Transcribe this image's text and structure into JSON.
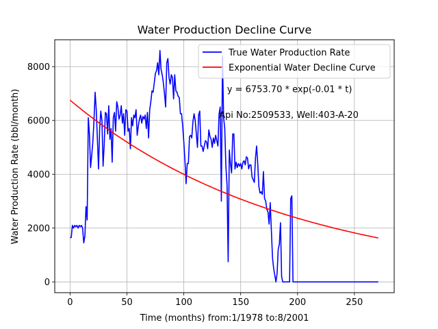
{
  "chart_data": {
    "type": "line",
    "title": "Water Production Decline Curve",
    "xlabel": "Time (months) from:1/1978 to:8/2001",
    "ylabel": "Water Production Rate (bbl/month)",
    "xlim": [
      -13.5,
      285
    ],
    "ylim": [
      -400,
      9000
    ],
    "xticks": [
      0,
      50,
      100,
      150,
      200,
      250
    ],
    "yticks": [
      0,
      2000,
      4000,
      6000,
      8000
    ],
    "grid": true,
    "legend_position": "top-right",
    "annotations": [
      {
        "text": "y = 6753.70 * exp(-0.01 * t)",
        "x": 138,
        "y": 7050
      },
      {
        "text": "Api No:2509533, Well:403-A-20",
        "x": 131,
        "y": 6100
      }
    ],
    "series": [
      {
        "name": "True Water Production Rate",
        "color": "#0000ff",
        "points": [
          [
            0,
            1650
          ],
          [
            1,
            1650
          ],
          [
            2,
            2100
          ],
          [
            3,
            2000
          ],
          [
            4,
            2100
          ],
          [
            5,
            2050
          ],
          [
            6,
            2100
          ],
          [
            7,
            2000
          ],
          [
            8,
            2100
          ],
          [
            9,
            2050
          ],
          [
            10,
            2100
          ],
          [
            11,
            2000
          ],
          [
            12,
            1450
          ],
          [
            13,
            1700
          ],
          [
            14,
            2800
          ],
          [
            15,
            2300
          ],
          [
            16,
            6100
          ],
          [
            17,
            5500
          ],
          [
            18,
            4250
          ],
          [
            19,
            4700
          ],
          [
            20,
            5200
          ],
          [
            21,
            6000
          ],
          [
            22,
            7050
          ],
          [
            23,
            6400
          ],
          [
            24,
            5300
          ],
          [
            25,
            4200
          ],
          [
            26,
            5700
          ],
          [
            27,
            6350
          ],
          [
            28,
            6000
          ],
          [
            29,
            4300
          ],
          [
            30,
            5100
          ],
          [
            31,
            6300
          ],
          [
            32,
            6250
          ],
          [
            33,
            5500
          ],
          [
            34,
            6550
          ],
          [
            35,
            5300
          ],
          [
            36,
            5700
          ],
          [
            37,
            4450
          ],
          [
            38,
            6100
          ],
          [
            39,
            6300
          ],
          [
            40,
            5600
          ],
          [
            41,
            6700
          ],
          [
            42,
            6500
          ],
          [
            43,
            6050
          ],
          [
            44,
            6200
          ],
          [
            45,
            6550
          ],
          [
            46,
            5900
          ],
          [
            47,
            6250
          ],
          [
            48,
            5450
          ],
          [
            49,
            6400
          ],
          [
            50,
            6350
          ],
          [
            51,
            5600
          ],
          [
            52,
            5700
          ],
          [
            53,
            4950
          ],
          [
            54,
            6100
          ],
          [
            55,
            5800
          ],
          [
            56,
            6200
          ],
          [
            57,
            6100
          ],
          [
            58,
            6400
          ],
          [
            59,
            5450
          ],
          [
            60,
            5800
          ],
          [
            61,
            6050
          ],
          [
            62,
            6200
          ],
          [
            63,
            5900
          ],
          [
            64,
            6150
          ],
          [
            65,
            6050
          ],
          [
            66,
            6200
          ],
          [
            67,
            5700
          ],
          [
            68,
            6300
          ],
          [
            69,
            5350
          ],
          [
            70,
            6400
          ],
          [
            71,
            6700
          ],
          [
            72,
            7100
          ],
          [
            73,
            7050
          ],
          [
            74,
            7400
          ],
          [
            75,
            7750
          ],
          [
            76,
            7850
          ],
          [
            77,
            8150
          ],
          [
            78,
            7700
          ],
          [
            79,
            8600
          ],
          [
            80,
            7900
          ],
          [
            81,
            7700
          ],
          [
            82,
            7400
          ],
          [
            83,
            7000
          ],
          [
            84,
            6500
          ],
          [
            85,
            8150
          ],
          [
            86,
            8300
          ],
          [
            87,
            7600
          ],
          [
            88,
            7350
          ],
          [
            89,
            7700
          ],
          [
            90,
            7600
          ],
          [
            91,
            6800
          ],
          [
            92,
            7700
          ],
          [
            93,
            7100
          ],
          [
            94,
            7050
          ],
          [
            95,
            6900
          ],
          [
            96,
            6850
          ],
          [
            97,
            6250
          ],
          [
            98,
            6250
          ],
          [
            99,
            5800
          ],
          [
            100,
            5200
          ],
          [
            101,
            4500
          ],
          [
            102,
            3650
          ],
          [
            103,
            4400
          ],
          [
            104,
            4400
          ],
          [
            105,
            5400
          ],
          [
            106,
            5450
          ],
          [
            107,
            5350
          ],
          [
            108,
            5950
          ],
          [
            109,
            6250
          ],
          [
            110,
            6000
          ],
          [
            111,
            5500
          ],
          [
            112,
            5000
          ],
          [
            113,
            6200
          ],
          [
            114,
            6350
          ],
          [
            115,
            5050
          ],
          [
            116,
            5050
          ],
          [
            117,
            4850
          ],
          [
            118,
            5050
          ],
          [
            119,
            5250
          ],
          [
            120,
            5200
          ],
          [
            121,
            4950
          ],
          [
            122,
            5650
          ],
          [
            123,
            5400
          ],
          [
            124,
            5300
          ],
          [
            125,
            5000
          ],
          [
            126,
            5350
          ],
          [
            127,
            5150
          ],
          [
            128,
            5450
          ],
          [
            129,
            5250
          ],
          [
            130,
            5050
          ],
          [
            131,
            6250
          ],
          [
            132,
            6500
          ],
          [
            133,
            3000
          ],
          [
            134,
            8400
          ],
          [
            135,
            6100
          ],
          [
            136,
            5700
          ],
          [
            137,
            4300
          ],
          [
            138,
            3600
          ],
          [
            139,
            750
          ],
          [
            140,
            4900
          ],
          [
            141,
            4400
          ],
          [
            142,
            4050
          ],
          [
            143,
            5500
          ],
          [
            144,
            5500
          ],
          [
            145,
            4200
          ],
          [
            146,
            4450
          ],
          [
            147,
            4250
          ],
          [
            148,
            4400
          ],
          [
            149,
            4300
          ],
          [
            150,
            4400
          ],
          [
            151,
            4200
          ],
          [
            152,
            4450
          ],
          [
            153,
            4500
          ],
          [
            154,
            4350
          ],
          [
            155,
            4650
          ],
          [
            156,
            4600
          ],
          [
            157,
            4200
          ],
          [
            158,
            4350
          ],
          [
            159,
            4350
          ],
          [
            160,
            3900
          ],
          [
            161,
            3800
          ],
          [
            162,
            3700
          ],
          [
            163,
            4600
          ],
          [
            164,
            5050
          ],
          [
            165,
            4400
          ],
          [
            166,
            3550
          ],
          [
            167,
            3300
          ],
          [
            168,
            3350
          ],
          [
            169,
            3250
          ],
          [
            170,
            4100
          ],
          [
            171,
            3100
          ],
          [
            172,
            3000
          ],
          [
            173,
            2700
          ],
          [
            174,
            2600
          ],
          [
            175,
            2150
          ],
          [
            176,
            2950
          ],
          [
            177,
            1900
          ],
          [
            178,
            900
          ],
          [
            179,
            500
          ],
          [
            180,
            250
          ],
          [
            181,
            0
          ],
          [
            182,
            300
          ],
          [
            183,
            1200
          ],
          [
            184,
            1400
          ],
          [
            185,
            2200
          ],
          [
            186,
            200
          ],
          [
            187,
            0
          ],
          [
            188,
            0
          ],
          [
            189,
            0
          ],
          [
            190,
            0
          ],
          [
            191,
            0
          ],
          [
            192,
            0
          ],
          [
            193,
            0
          ],
          [
            194,
            3100
          ],
          [
            195,
            3200
          ],
          [
            196,
            0
          ],
          [
            197,
            0
          ],
          [
            271,
            0
          ]
        ]
      },
      {
        "name": "Exponential Water Decline Curve",
        "color": "#ff0000",
        "function": "6753.70 * exp(-0.00524 * t)",
        "x_range": [
          0,
          271
        ]
      }
    ]
  }
}
